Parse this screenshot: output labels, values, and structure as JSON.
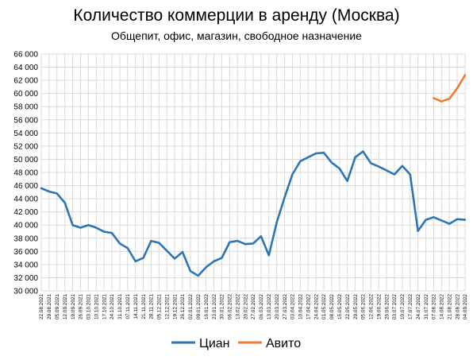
{
  "chart_data": {
    "type": "line",
    "title": "Количество коммерции в аренду (Москва)",
    "subtitle": "Общепит, офис, магазин, свободное назначение",
    "xlabel": "",
    "ylabel": "",
    "ylim": [
      30000,
      66000
    ],
    "yticks": [
      30000,
      32000,
      34000,
      36000,
      38000,
      40000,
      42000,
      44000,
      46000,
      48000,
      50000,
      52000,
      54000,
      56000,
      58000,
      60000,
      62000,
      64000,
      66000
    ],
    "ytick_labels": [
      "30 000",
      "32 000",
      "34 000",
      "36 000",
      "38 000",
      "40 000",
      "42 000",
      "44 000",
      "46 000",
      "48 000",
      "50 000",
      "52 000",
      "54 000",
      "56 000",
      "58 000",
      "60 000",
      "62 000",
      "64 000",
      "66 000"
    ],
    "grid": true,
    "legend": "bottom",
    "x_tick_labels": [
      "22.08.2021",
      "29.08.2021",
      "05.09.2021",
      "12.09.2021",
      "19.09.2021",
      "26.09.2021",
      "03.10.2021",
      "10.10.2021",
      "17.10.2021",
      "24.10.2021",
      "31.10.2021",
      "07.11.2021",
      "14.11.2021",
      "21.11.2021",
      "28.11.2021",
      "05.12.2021",
      "12.12.2021",
      "19.12.2021",
      "26.12.2021",
      "02.01.2022",
      "09.01.2022",
      "16.01.2022",
      "23.01.2022",
      "30.01.2022",
      "06.02.2022",
      "13.02.2022",
      "20.02.2022",
      "27.02.2022",
      "06.03.2022",
      "13.03.2022",
      "20.03.2022",
      "27.03.2022",
      "03.04.2022",
      "10.04.2022",
      "17.04.2022",
      "24.04.2022",
      "01.05.2022",
      "08.05.2022",
      "15.05.2022",
      "22.05.2022",
      "29.05.2022",
      "05.06.2022",
      "12.06.2022",
      "19.06.2022",
      "26.06.2022",
      "03.07.2022",
      "10.07.2022",
      "17.07.2022",
      "24.07.2022",
      "31.07.2022",
      "07.08.2022",
      "14.08.2022",
      "21.08.2022",
      "28.08.2022",
      "04.09.2022"
    ],
    "series": [
      {
        "name": "Циан",
        "color": "#2e75b6",
        "values": [
          45600,
          45100,
          44800,
          43400,
          40000,
          39600,
          40000,
          39600,
          39000,
          38800,
          37200,
          36500,
          34500,
          35000,
          37600,
          37300,
          36100,
          34900,
          35900,
          33000,
          32300,
          33600,
          34500,
          35000,
          37400,
          37600,
          37100,
          37200,
          38300,
          35400,
          40400,
          44200,
          47700,
          49700,
          50300,
          50900,
          51000,
          49500,
          48600,
          46700,
          50300,
          51200,
          49400,
          48900,
          48300,
          47700,
          49000,
          47700,
          39100,
          40800,
          41200,
          40700,
          40200,
          40900,
          40800
        ]
      },
      {
        "name": "Авито",
        "color": "#ed7d31",
        "values": [
          null,
          null,
          null,
          null,
          null,
          null,
          null,
          null,
          null,
          null,
          null,
          null,
          null,
          null,
          null,
          null,
          null,
          null,
          null,
          null,
          null,
          null,
          null,
          null,
          null,
          null,
          null,
          null,
          null,
          null,
          null,
          null,
          null,
          null,
          null,
          null,
          null,
          null,
          null,
          null,
          null,
          null,
          null,
          null,
          null,
          null,
          null,
          null,
          null,
          null,
          59300,
          58800,
          59200,
          60800,
          62800
        ]
      }
    ]
  }
}
